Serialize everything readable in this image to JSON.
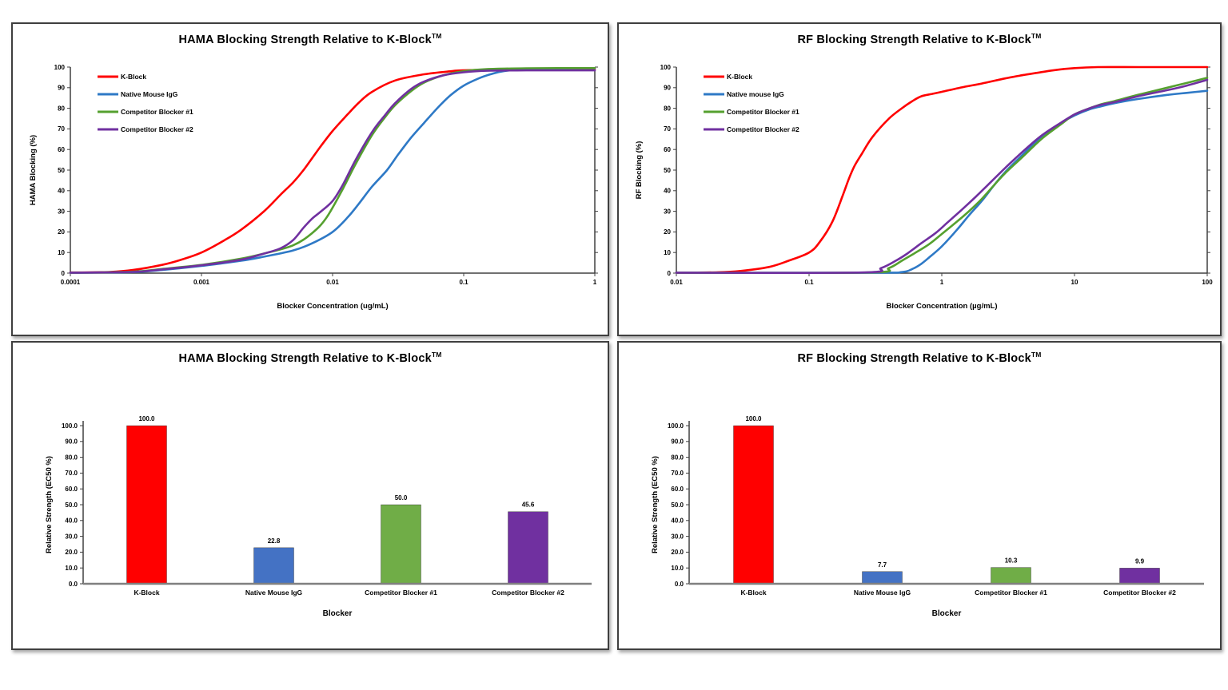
{
  "colors": {
    "red": "#FF0000",
    "blue_line": "#2E79C6",
    "blue_bar": "#4472C4",
    "green_line": "#55A02F",
    "green_bar": "#70AD47",
    "purple": "#7030A0",
    "axis": "#404040",
    "bar_baseline": "#808080"
  },
  "chart_data": [
    {
      "id": "hama-curves",
      "type": "line",
      "title": "HAMA Blocking Strength Relative to K-Block",
      "title_sup": "TM",
      "xlabel": "Blocker Concentration (ug/mL)",
      "ylabel": "HAMA Blocking (%)",
      "x_scale": "log",
      "xlim": [
        0.0001,
        1
      ],
      "x_tick_labels": [
        "0.0001",
        "0.001",
        "0.01",
        "0.1",
        "1"
      ],
      "ylim": [
        0,
        100
      ],
      "y_tick_labels": [
        "0",
        "10",
        "20",
        "30",
        "40",
        "50",
        "60",
        "70",
        "80",
        "90",
        "100"
      ],
      "legend_position": "top-left",
      "grid": false,
      "series": [
        {
          "name": "K-Block",
          "color": "#FF0000",
          "points": [
            [
              0.0001,
              0.3
            ],
            [
              0.0002,
              0.6
            ],
            [
              0.0003,
              1.5
            ],
            [
              0.0005,
              4
            ],
            [
              0.0007,
              6.5
            ],
            [
              0.001,
              10
            ],
            [
              0.0015,
              16
            ],
            [
              0.002,
              21
            ],
            [
              0.003,
              30
            ],
            [
              0.004,
              38
            ],
            [
              0.005,
              44
            ],
            [
              0.006,
              50
            ],
            [
              0.008,
              61
            ],
            [
              0.01,
              69
            ],
            [
              0.013,
              77
            ],
            [
              0.016,
              83
            ],
            [
              0.02,
              88
            ],
            [
              0.03,
              93.5
            ],
            [
              0.05,
              96.5
            ],
            [
              0.08,
              98
            ],
            [
              0.1,
              98.4
            ],
            [
              0.2,
              98.8
            ],
            [
              0.5,
              98.8
            ],
            [
              1,
              98.8
            ]
          ]
        },
        {
          "name": "Native Mouse IgG",
          "color": "#2E79C6",
          "points": [
            [
              0.0001,
              0.2
            ],
            [
              0.0003,
              0.5
            ],
            [
              0.0005,
              1.5
            ],
            [
              0.001,
              3.5
            ],
            [
              0.002,
              6
            ],
            [
              0.003,
              8
            ],
            [
              0.005,
              11
            ],
            [
              0.007,
              14.5
            ],
            [
              0.01,
              20
            ],
            [
              0.013,
              27
            ],
            [
              0.016,
              34
            ],
            [
              0.02,
              42
            ],
            [
              0.026,
              50
            ],
            [
              0.032,
              58
            ],
            [
              0.04,
              66
            ],
            [
              0.05,
              73
            ],
            [
              0.065,
              81
            ],
            [
              0.08,
              86.5
            ],
            [
              0.1,
              91
            ],
            [
              0.13,
              94.5
            ],
            [
              0.16,
              96.5
            ],
            [
              0.2,
              98
            ],
            [
              0.3,
              99
            ],
            [
              0.5,
              99.3
            ],
            [
              1,
              99.4
            ]
          ]
        },
        {
          "name": "Competitor Blocker #1",
          "color": "#55A02F",
          "points": [
            [
              0.0001,
              0.2
            ],
            [
              0.0003,
              0.7
            ],
            [
              0.0005,
              2
            ],
            [
              0.001,
              4
            ],
            [
              0.002,
              7
            ],
            [
              0.003,
              9.5
            ],
            [
              0.005,
              13.5
            ],
            [
              0.007,
              19.5
            ],
            [
              0.009,
              27
            ],
            [
              0.012,
              41
            ],
            [
              0.015,
              53
            ],
            [
              0.02,
              67
            ],
            [
              0.025,
              75.5
            ],
            [
              0.03,
              81.5
            ],
            [
              0.04,
              88.5
            ],
            [
              0.05,
              92.5
            ],
            [
              0.07,
              96
            ],
            [
              0.1,
              98
            ],
            [
              0.15,
              99
            ],
            [
              0.3,
              99.4
            ],
            [
              1,
              99.5
            ]
          ]
        },
        {
          "name": "Competitor Blocker #2",
          "color": "#7030A0",
          "points": [
            [
              0.0001,
              0.2
            ],
            [
              0.0003,
              0.6
            ],
            [
              0.0005,
              1.8
            ],
            [
              0.001,
              3.8
            ],
            [
              0.002,
              6.5
            ],
            [
              0.003,
              9.5
            ],
            [
              0.004,
              12
            ],
            [
              0.005,
              16
            ],
            [
              0.006,
              22
            ],
            [
              0.007,
              26.5
            ],
            [
              0.008,
              29.5
            ],
            [
              0.01,
              35
            ],
            [
              0.012,
              43
            ],
            [
              0.015,
              55
            ],
            [
              0.02,
              68.5
            ],
            [
              0.025,
              76.5
            ],
            [
              0.03,
              82.5
            ],
            [
              0.04,
              89.5
            ],
            [
              0.05,
              93
            ],
            [
              0.07,
              96
            ],
            [
              0.1,
              97.5
            ],
            [
              0.15,
              98.2
            ],
            [
              0.3,
              98.4
            ],
            [
              1,
              98.4
            ]
          ]
        }
      ]
    },
    {
      "id": "rf-curves",
      "type": "line",
      "title": "RF Blocking Strength Relative to K-Block",
      "title_sup": "TM",
      "xlabel": "Blocker Concentration (µg/mL)",
      "ylabel": "RF Blocking (%)",
      "x_scale": "log",
      "xlim": [
        0.01,
        100
      ],
      "x_tick_labels": [
        "0.01",
        "0.1",
        "1",
        "10",
        "100"
      ],
      "ylim": [
        0,
        100
      ],
      "y_tick_labels": [
        "0",
        "10",
        "20",
        "30",
        "40",
        "50",
        "60",
        "70",
        "80",
        "90",
        "100"
      ],
      "legend_position": "top-left",
      "grid": false,
      "series": [
        {
          "name": "K-Block",
          "color": "#FF0000",
          "points": [
            [
              0.01,
              0.2
            ],
            [
              0.02,
              0.4
            ],
            [
              0.03,
              1
            ],
            [
              0.05,
              3
            ],
            [
              0.07,
              6
            ],
            [
              0.1,
              10
            ],
            [
              0.12,
              15
            ],
            [
              0.15,
              25
            ],
            [
              0.18,
              38
            ],
            [
              0.2,
              46
            ],
            [
              0.22,
              52
            ],
            [
              0.25,
              58
            ],
            [
              0.3,
              66
            ],
            [
              0.4,
              75
            ],
            [
              0.5,
              80
            ],
            [
              0.6,
              83.5
            ],
            [
              0.7,
              85.8
            ],
            [
              0.85,
              87
            ],
            [
              1,
              88
            ],
            [
              1.5,
              90.5
            ],
            [
              2,
              92
            ],
            [
              3,
              94.5
            ],
            [
              4,
              96
            ],
            [
              5,
              97
            ],
            [
              7,
              98.5
            ],
            [
              10,
              99.5
            ],
            [
              15,
              100
            ],
            [
              30,
              100
            ],
            [
              60,
              100
            ],
            [
              100,
              100
            ]
          ]
        },
        {
          "name": "Native mouse IgG",
          "color": "#2E79C6",
          "points": [
            [
              0.01,
              0.2
            ],
            [
              0.3,
              0.2
            ],
            [
              0.5,
              0.5
            ],
            [
              0.6,
              2
            ],
            [
              0.7,
              4.5
            ],
            [
              0.8,
              7.5
            ],
            [
              1,
              13
            ],
            [
              1.3,
              21
            ],
            [
              1.6,
              28
            ],
            [
              2,
              35
            ],
            [
              2.5,
              43
            ],
            [
              3,
              49
            ],
            [
              4,
              57
            ],
            [
              5,
              63
            ],
            [
              6,
              67
            ],
            [
              8,
              73
            ],
            [
              10,
              76.5
            ],
            [
              13,
              79.5
            ],
            [
              16,
              81
            ],
            [
              20,
              82.5
            ],
            [
              30,
              84.5
            ],
            [
              50,
              86.5
            ],
            [
              70,
              87.5
            ],
            [
              100,
              88.5
            ]
          ]
        },
        {
          "name": "Competitor Blocker #1",
          "color": "#55A02F",
          "points": [
            [
              0.01,
              0.2
            ],
            [
              0.28,
              0.3
            ],
            [
              0.4,
              2.5
            ],
            [
              0.5,
              6
            ],
            [
              0.6,
              9
            ],
            [
              0.8,
              14
            ],
            [
              1,
              19
            ],
            [
              1.3,
              25
            ],
            [
              1.6,
              30
            ],
            [
              2,
              36
            ],
            [
              2.5,
              43
            ],
            [
              3,
              48.5
            ],
            [
              4,
              56
            ],
            [
              5,
              62
            ],
            [
              6,
              66.5
            ],
            [
              8,
              72.5
            ],
            [
              10,
              77
            ],
            [
              13,
              80
            ],
            [
              16,
              82
            ],
            [
              20,
              83.5
            ],
            [
              30,
              86.5
            ],
            [
              50,
              90
            ],
            [
              70,
              92.3
            ],
            [
              100,
              94.8
            ]
          ]
        },
        {
          "name": "Competitor Blocker #2",
          "color": "#7030A0",
          "points": [
            [
              0.01,
              0.2
            ],
            [
              0.25,
              0.3
            ],
            [
              0.35,
              2.5
            ],
            [
              0.45,
              6
            ],
            [
              0.55,
              9.5
            ],
            [
              0.7,
              14.5
            ],
            [
              0.9,
              19.5
            ],
            [
              1.1,
              24.5
            ],
            [
              1.4,
              30.5
            ],
            [
              1.8,
              37
            ],
            [
              2.2,
              42.5
            ],
            [
              3,
              51
            ],
            [
              4,
              58.5
            ],
            [
              5,
              64
            ],
            [
              6,
              68
            ],
            [
              8,
              73.2
            ],
            [
              10,
              77
            ],
            [
              13,
              80
            ],
            [
              16,
              81.8
            ],
            [
              20,
              83
            ],
            [
              30,
              85.8
            ],
            [
              50,
              88.8
            ],
            [
              70,
              91
            ],
            [
              100,
              93.8
            ]
          ]
        }
      ]
    },
    {
      "id": "hama-bars",
      "type": "bar",
      "title": "HAMA Blocking Strength Relative to K-Block",
      "title_sup": "TM",
      "xlabel": "Blocker",
      "ylabel": "Relative Strength (EC50 %)",
      "categories": [
        "K-Block",
        "Native Mouse IgG",
        "Competitor Blocker #1",
        "Competitor Blocker #2"
      ],
      "values": [
        100.0,
        22.8,
        50.0,
        45.6
      ],
      "value_labels": [
        "100.0",
        "22.8",
        "50.0",
        "45.6"
      ],
      "bar_colors": [
        "#FF0000",
        "#4472C4",
        "#70AD47",
        "#7030A0"
      ],
      "ylim": [
        0,
        100
      ],
      "y_tick_labels": [
        "0.0",
        "10.0",
        "20.0",
        "30.0",
        "40.0",
        "50.0",
        "60.0",
        "70.0",
        "80.0",
        "90.0",
        "100.0"
      ],
      "grid": false
    },
    {
      "id": "rf-bars",
      "type": "bar",
      "title": "RF Blocking Strength Relative to K-Block",
      "title_sup": "TM",
      "xlabel": "Blocker",
      "ylabel": "Relative Strength (EC50 %)",
      "categories": [
        "K-Block",
        "Native Mouse IgG",
        "Competitor Blocker #1",
        "Competitor Blocker #2"
      ],
      "values": [
        100.0,
        7.7,
        10.3,
        9.9
      ],
      "value_labels": [
        "100.0",
        "7.7",
        "10.3",
        "9.9"
      ],
      "bar_colors": [
        "#FF0000",
        "#4472C4",
        "#70AD47",
        "#7030A0"
      ],
      "ylim": [
        0,
        100
      ],
      "y_tick_labels": [
        "0.0",
        "10.0",
        "20.0",
        "30.0",
        "40.0",
        "50.0",
        "60.0",
        "70.0",
        "80.0",
        "90.0",
        "100.0"
      ],
      "grid": false
    }
  ]
}
